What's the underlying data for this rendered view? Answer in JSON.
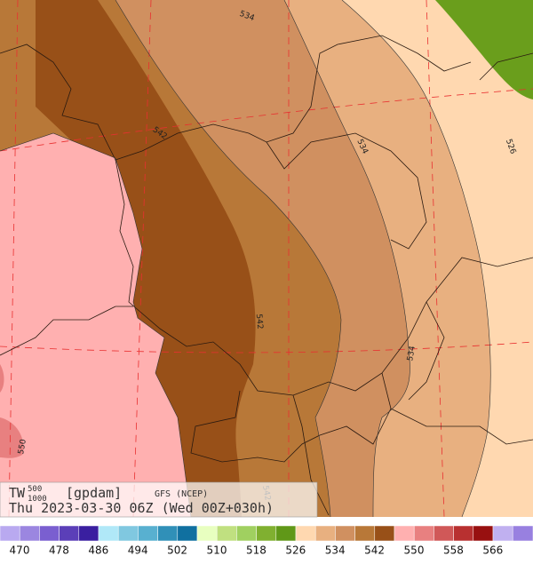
{
  "map": {
    "contour_labels": [
      "534",
      "542",
      "534",
      "526",
      "542",
      "534",
      "550",
      "542"
    ]
  },
  "info": {
    "field": "TW",
    "superscript": "500",
    "subscript": "1000",
    "units": "[gpdam]",
    "model": "GFS (NCEP)",
    "time": "Thu 2023-03-30 06Z (Wed 00Z+030h)"
  },
  "colorbar": {
    "labels": [
      470,
      478,
      486,
      494,
      502,
      510,
      518,
      526,
      534,
      542,
      550,
      558,
      566
    ]
  }
}
